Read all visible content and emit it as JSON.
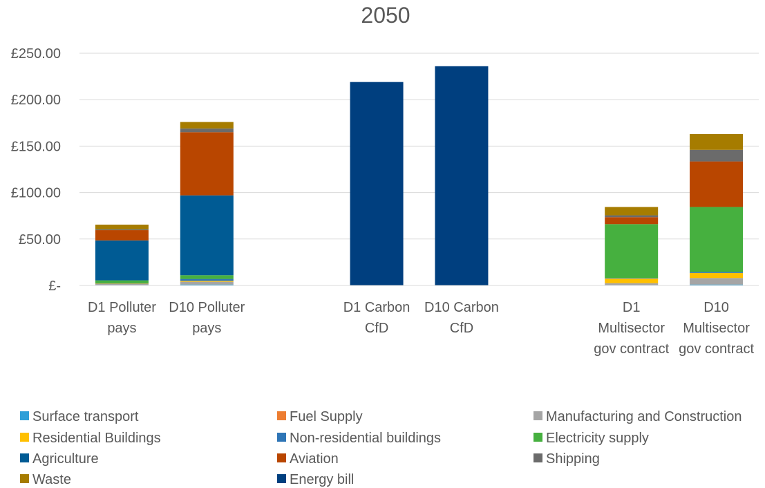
{
  "chart_data": {
    "type": "bar",
    "stacked": true,
    "title": "2050",
    "xlabel": "",
    "ylabel": "",
    "ylim": [
      0,
      250
    ],
    "yticks": [
      0,
      50,
      100,
      150,
      200,
      250
    ],
    "ytick_labels": [
      "£-",
      "£50.00",
      "£100.00",
      "£150.00",
      "£200.00",
      "£250.00"
    ],
    "grid": true,
    "legend_position": "bottom",
    "categories": [
      [
        "D1 Polluter",
        "pays"
      ],
      [
        "D10 Polluter",
        "pays"
      ],
      [
        "",
        ""
      ],
      [
        "D1 Carbon",
        "CfD"
      ],
      [
        "D10 Carbon",
        "CfD"
      ],
      [
        "",
        ""
      ],
      [
        "D1",
        "Multisector",
        "gov contract"
      ],
      [
        "D10",
        "Multisector",
        "gov contract"
      ]
    ],
    "series": [
      {
        "name": "Surface transport",
        "color": "#2E9FD8",
        "values": [
          0.5,
          1.0,
          0,
          0,
          0,
          0,
          0.5,
          1.0
        ]
      },
      {
        "name": "Fuel Supply",
        "color": "#ED7D31",
        "values": [
          0,
          0,
          0,
          0,
          0,
          0,
          0,
          0
        ]
      },
      {
        "name": "Manufacturing and Construction",
        "color": "#A5A5A5",
        "values": [
          1.0,
          3.0,
          0,
          0,
          0,
          0,
          2.0,
          7.0
        ]
      },
      {
        "name": "Residential Buildings",
        "color": "#FFC000",
        "values": [
          0.5,
          1.0,
          0,
          0,
          0,
          0,
          5.0,
          5.5
        ]
      },
      {
        "name": "Non-residential buildings",
        "color": "#2E75B6",
        "values": [
          0.5,
          2.0,
          0,
          0,
          0,
          0,
          0.5,
          1.0
        ]
      },
      {
        "name": "Electricity supply",
        "color": "#46B03F",
        "values": [
          3.0,
          4.0,
          0,
          0,
          0,
          0,
          58.0,
          70.0
        ]
      },
      {
        "name": "Agriculture",
        "color": "#005B94",
        "values": [
          43.0,
          86.0,
          0,
          0,
          0,
          0,
          0,
          0
        ]
      },
      {
        "name": "Aviation",
        "color": "#B94600",
        "values": [
          11.0,
          68.0,
          0,
          0,
          0,
          0,
          7.5,
          49.0
        ]
      },
      {
        "name": "Shipping",
        "color": "#6B6B6B",
        "values": [
          1.0,
          4.0,
          0,
          0,
          0,
          0,
          2.0,
          12.5
        ]
      },
      {
        "name": "Waste",
        "color": "#A67C00",
        "values": [
          5.0,
          7.0,
          0,
          0,
          0,
          0,
          9.0,
          17.0
        ]
      },
      {
        "name": "Energy bill",
        "color": "#003F7F",
        "values": [
          0,
          0,
          0,
          219.0,
          236.0,
          0,
          0,
          0
        ]
      }
    ]
  }
}
